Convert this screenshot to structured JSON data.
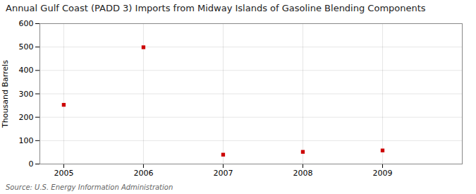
{
  "chart_data": {
    "type": "scatter",
    "title": "Annual Gulf Coast (PADD 3) Imports from Midway Islands of Gasoline Blending Components",
    "ylabel": "Thousand Barrels",
    "source": "Source: U.S. Energy Information Administration",
    "x": [
      2005,
      2006,
      2007,
      2008,
      2009
    ],
    "values": [
      253,
      499,
      40,
      52,
      58
    ],
    "color": "#cc0000",
    "marker": "square",
    "xlim": [
      2004.7,
      2010.0
    ],
    "xticks": [
      2005,
      2006,
      2007,
      2008,
      2009
    ],
    "ylim": [
      0,
      600
    ],
    "yticks": [
      0,
      100,
      200,
      300,
      400,
      500,
      600
    ],
    "grid": true
  }
}
